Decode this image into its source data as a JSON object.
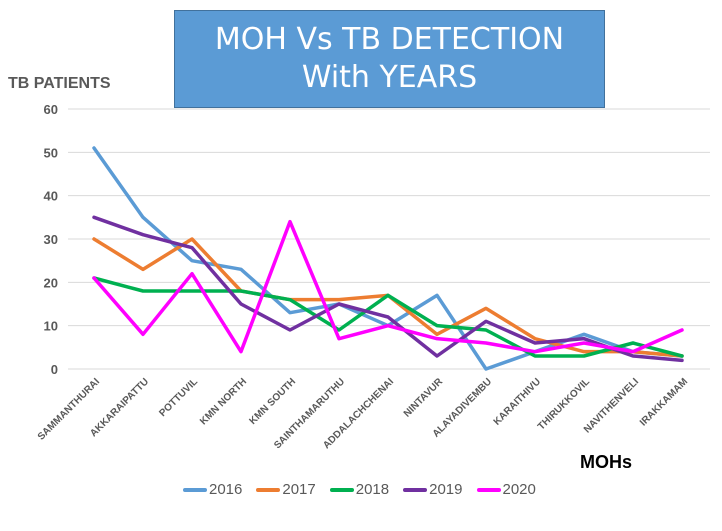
{
  "chart_data": {
    "type": "line",
    "title": "MOH Vs TB DETECTION With YEARS",
    "title_lines": [
      "MOH Vs TB DETECTION",
      "With YEARS"
    ],
    "xlabel": "MOHs",
    "ylabel": "TB PATIENTS",
    "ylim": [
      0,
      60
    ],
    "yticks": [
      0,
      10,
      20,
      30,
      40,
      50,
      60
    ],
    "grid": true,
    "legend_position": "bottom",
    "categories": [
      "SAMMANTHURAI",
      "AKKARAIPATTU",
      "POTTUVIL",
      "KMN NORTH",
      "KMN SOUTH",
      "SAINTHAMARUTHU",
      "ADDALACHCHENAI",
      "NINTAVUR",
      "ALAYADIVEMBU",
      "KARAITHIVU",
      "THIRUKKOVIL",
      "NAVITHENVELI",
      "IRAKKAMAM"
    ],
    "series": [
      {
        "name": "2016",
        "color": "#5B9BD5",
        "values": [
          51,
          35,
          25,
          23,
          13,
          15,
          10,
          17,
          0,
          4,
          8,
          4,
          3
        ]
      },
      {
        "name": "2017",
        "color": "#ED7D31",
        "values": [
          30,
          23,
          30,
          18,
          16,
          16,
          17,
          8,
          14,
          7,
          4,
          4,
          3
        ]
      },
      {
        "name": "2018",
        "color": "#00B050",
        "values": [
          21,
          18,
          18,
          18,
          16,
          9,
          17,
          10,
          9,
          3,
          3,
          6,
          3
        ]
      },
      {
        "name": "2019",
        "color": "#7030A0",
        "values": [
          35,
          31,
          28,
          15,
          9,
          15,
          12,
          3,
          11,
          6,
          7,
          3,
          2
        ]
      },
      {
        "name": "2020",
        "color": "#FF00FF",
        "values": [
          21,
          8,
          22,
          4,
          34,
          7,
          10,
          7,
          6,
          4,
          6,
          4,
          9
        ]
      }
    ]
  }
}
